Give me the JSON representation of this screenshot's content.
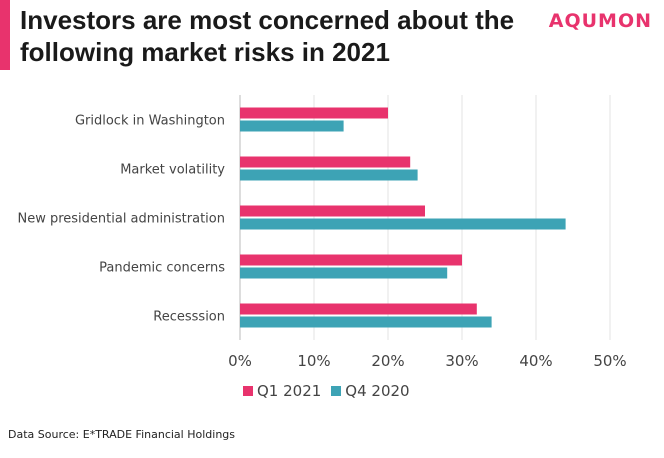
{
  "header": {
    "title": "Investors are most concerned about the following market risks in 2021",
    "brand": "AQUMON"
  },
  "footer": {
    "source": "Data Source: E*TRADE Financial Holdings"
  },
  "colors": {
    "accent": "#e8336d",
    "series_q1_2021": "#e8336d",
    "series_q4_2020": "#3da3b5"
  },
  "chart_data": {
    "type": "bar",
    "orientation": "horizontal",
    "title": "Investors are most concerned about the following market risks in 2021",
    "xlabel": "",
    "ylabel": "",
    "categories": [
      "Gridlock in Washington",
      "Market volatility",
      "New presidential administration",
      "Pandemic concerns",
      "Recesssion"
    ],
    "series": [
      {
        "name": "Q1 2021",
        "color": "#e8336d",
        "values": [
          20,
          23,
          25,
          30,
          32
        ]
      },
      {
        "name": "Q4 2020",
        "color": "#3da3b5",
        "values": [
          14,
          24,
          44,
          28,
          34
        ]
      }
    ],
    "xlim": [
      0,
      50
    ],
    "xticks": [
      "0%",
      "10%",
      "20%",
      "30%",
      "40%",
      "50%"
    ],
    "grid": true,
    "legend": "bottom"
  }
}
